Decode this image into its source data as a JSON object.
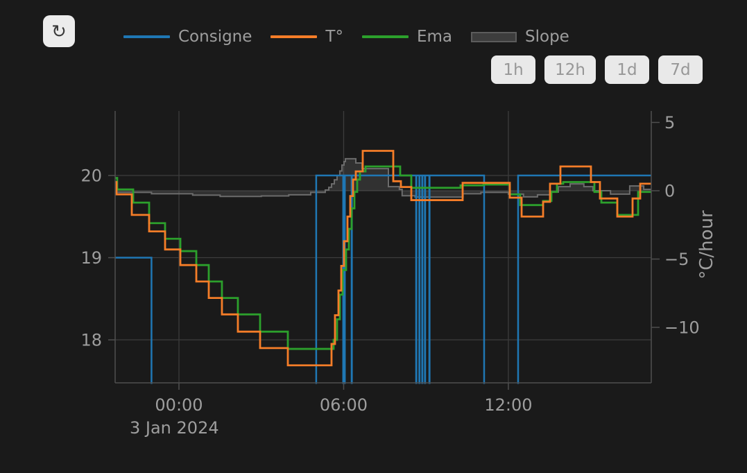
{
  "toolbar": {
    "refresh_icon": "↻"
  },
  "range_buttons": [
    {
      "label": "1h"
    },
    {
      "label": "12h"
    },
    {
      "label": "1d"
    },
    {
      "label": "7d"
    }
  ],
  "legend": [
    {
      "label": "Consigne",
      "color": "#1f77b4",
      "swatch": "line"
    },
    {
      "label": "T°",
      "color": "#f57d28",
      "swatch": "line"
    },
    {
      "label": "Ema",
      "color": "#2ca02c",
      "swatch": "line"
    },
    {
      "label": "Slope",
      "color": "#3d3d3d",
      "swatch": "bar"
    }
  ],
  "chart_data": {
    "type": "line",
    "x_axis": {
      "range_hours": [
        -2.3244,
        17.206
      ],
      "ticks": [
        {
          "t": 0,
          "label": "00:00"
        },
        {
          "t": 6,
          "label": "06:00"
        },
        {
          "t": 12,
          "label": "12:00"
        }
      ],
      "date_label": "3 Jan 2024"
    },
    "y_left": {
      "range": [
        17.477,
        20.785
      ],
      "ticks": [
        18,
        19,
        20
      ]
    },
    "y_right": {
      "range": [
        -14.06,
        5.838
      ],
      "ticks": [
        5,
        0,
        -5,
        -10
      ],
      "grid_ticks": [
        0
      ],
      "label": "°C/hour"
    },
    "series": [
      {
        "name": "Slope",
        "axis": "right",
        "style": "step-area",
        "color": "#6c6c6c",
        "fill": "rgba(130,130,130,0.22)",
        "width": 2,
        "points": [
          [
            -2.3244,
            -0.12
          ],
          [
            -1.0,
            -0.22
          ],
          [
            0.5,
            -0.32
          ],
          [
            1.5,
            -0.42
          ],
          [
            3.0,
            -0.38
          ],
          [
            4.0,
            -0.3
          ],
          [
            4.8,
            -0.12
          ],
          [
            5.33,
            0.05
          ],
          [
            5.458,
            0.25
          ],
          [
            5.558,
            0.5
          ],
          [
            5.66,
            0.8
          ],
          [
            5.76,
            1.12
          ],
          [
            5.86,
            1.45
          ],
          [
            5.937,
            1.88
          ],
          [
            6.013,
            2.13
          ],
          [
            6.064,
            2.34
          ],
          [
            6.443,
            2.03
          ],
          [
            6.67,
            1.62
          ],
          [
            7.63,
            0.3
          ],
          [
            8.03,
            0.1
          ],
          [
            8.13,
            -0.37
          ],
          [
            8.6,
            -0.46
          ],
          [
            10.35,
            -0.22
          ],
          [
            11.0,
            -0.12
          ],
          [
            12.0,
            -0.25
          ],
          [
            12.55,
            -0.45
          ],
          [
            13.06,
            -0.3
          ],
          [
            13.52,
            -0.1
          ],
          [
            13.82,
            0.3
          ],
          [
            14.25,
            0.5
          ],
          [
            14.75,
            0.3
          ],
          [
            15.08,
            0.0
          ],
          [
            15.72,
            -0.25
          ],
          [
            16.42,
            0.35
          ],
          [
            16.93,
            0.1
          ]
        ]
      },
      {
        "name": "Consigne",
        "axis": "left",
        "style": "step",
        "color": "#1f77b4",
        "width": 2.5,
        "points": [
          [
            -2.3244,
            19
          ],
          [
            -1.0,
            null
          ],
          [
            5.0,
            20
          ],
          [
            5.983,
            null
          ],
          [
            6.043,
            20
          ],
          [
            6.29,
            null
          ],
          [
            6.3,
            20
          ],
          [
            8.64,
            null
          ],
          [
            8.65,
            20
          ],
          [
            8.755,
            null
          ],
          [
            8.765,
            20
          ],
          [
            8.86,
            null
          ],
          [
            8.87,
            20
          ],
          [
            8.96,
            null
          ],
          [
            8.97,
            20
          ],
          [
            9.12,
            null
          ],
          [
            9.13,
            20
          ],
          [
            11.117,
            null
          ],
          [
            12.355,
            20
          ]
        ]
      },
      {
        "name": "Ema",
        "axis": "left",
        "style": "step",
        "color": "#2ca02c",
        "width": 2.8,
        "points": [
          [
            -2.3244,
            19.97
          ],
          [
            -2.25,
            19.83
          ],
          [
            -1.667,
            19.67
          ],
          [
            -1.086,
            19.42
          ],
          [
            -0.505,
            19.23
          ],
          [
            0.051,
            19.08
          ],
          [
            0.632,
            18.91
          ],
          [
            1.086,
            18.71
          ],
          [
            1.566,
            18.51
          ],
          [
            2.147,
            18.31
          ],
          [
            2.956,
            18.1
          ],
          [
            3.967,
            17.89
          ],
          [
            5.634,
            18.0
          ],
          [
            5.76,
            18.25
          ],
          [
            5.861,
            18.55
          ],
          [
            5.962,
            18.85
          ],
          [
            6.089,
            19.1
          ],
          [
            6.19,
            19.35
          ],
          [
            6.291,
            19.6
          ],
          [
            6.392,
            19.8
          ],
          [
            6.493,
            19.95
          ],
          [
            6.594,
            20.05
          ],
          [
            6.796,
            20.11
          ],
          [
            8.059,
            20.0
          ],
          [
            8.464,
            19.85
          ],
          [
            10.258,
            19.88
          ],
          [
            11.092,
            19.89
          ],
          [
            12.052,
            19.77
          ],
          [
            12.431,
            19.64
          ],
          [
            13.265,
            19.69
          ],
          [
            13.568,
            19.8
          ],
          [
            13.77,
            19.9
          ],
          [
            13.997,
            19.92
          ],
          [
            15.134,
            19.8
          ],
          [
            15.387,
            19.67
          ],
          [
            15.968,
            19.52
          ],
          [
            16.726,
            19.8
          ]
        ]
      },
      {
        "name": "T°",
        "axis": "left",
        "style": "step",
        "color": "#f57d28",
        "width": 2.8,
        "points": [
          [
            -2.3244,
            19.92
          ],
          [
            -2.274,
            19.77
          ],
          [
            -1.718,
            19.52
          ],
          [
            -1.086,
            19.32
          ],
          [
            -0.505,
            19.1
          ],
          [
            0.051,
            18.91
          ],
          [
            0.632,
            18.71
          ],
          [
            1.086,
            18.51
          ],
          [
            1.566,
            18.31
          ],
          [
            2.147,
            18.1
          ],
          [
            2.956,
            17.9
          ],
          [
            3.967,
            17.69
          ],
          [
            5.558,
            17.95
          ],
          [
            5.684,
            18.3
          ],
          [
            5.811,
            18.6
          ],
          [
            5.912,
            18.9
          ],
          [
            6.013,
            19.2
          ],
          [
            6.139,
            19.5
          ],
          [
            6.24,
            19.75
          ],
          [
            6.341,
            19.95
          ],
          [
            6.442,
            20.05
          ],
          [
            6.695,
            20.3
          ],
          [
            7.807,
            19.93
          ],
          [
            8.085,
            19.86
          ],
          [
            8.464,
            19.7
          ],
          [
            10.334,
            19.91
          ],
          [
            12.052,
            19.73
          ],
          [
            12.482,
            19.5
          ],
          [
            13.265,
            19.68
          ],
          [
            13.517,
            19.9
          ],
          [
            13.896,
            20.11
          ],
          [
            15.008,
            19.92
          ],
          [
            15.336,
            19.72
          ],
          [
            15.968,
            19.5
          ],
          [
            16.524,
            19.72
          ],
          [
            16.802,
            19.9
          ]
        ]
      }
    ]
  }
}
